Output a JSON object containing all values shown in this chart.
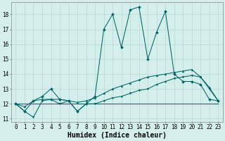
{
  "title": "",
  "xlabel": "Humidex (Indice chaleur)",
  "xlim": [
    -0.5,
    23.5
  ],
  "ylim": [
    10.8,
    18.8
  ],
  "yticks": [
    11,
    12,
    13,
    14,
    15,
    16,
    17,
    18
  ],
  "xticks": [
    0,
    1,
    2,
    3,
    4,
    5,
    6,
    7,
    8,
    9,
    10,
    11,
    12,
    13,
    14,
    15,
    16,
    17,
    18,
    19,
    20,
    21,
    22,
    23
  ],
  "bg_color": "#d4eeeb",
  "line_color": "#006666",
  "grid_color": "#b8d8d4",
  "series": {
    "flat": [
      12.0,
      12.0,
      12.0,
      12.0,
      12.0,
      12.0,
      12.0,
      12.0,
      12.0,
      12.0,
      12.0,
      12.0,
      12.0,
      12.0,
      12.0,
      12.0,
      12.0,
      12.0,
      12.0,
      12.0,
      12.0,
      12.0,
      12.0,
      12.0
    ],
    "lower": [
      12.0,
      11.5,
      11.1,
      12.2,
      12.3,
      12.0,
      12.2,
      11.5,
      12.0,
      12.0,
      12.2,
      12.4,
      12.5,
      12.7,
      12.9,
      13.0,
      13.3,
      13.5,
      13.7,
      13.8,
      13.9,
      13.8,
      13.0,
      12.2
    ],
    "middle": [
      12.0,
      11.8,
      12.2,
      12.3,
      12.3,
      12.3,
      12.2,
      12.1,
      12.2,
      12.4,
      12.7,
      13.0,
      13.2,
      13.4,
      13.6,
      13.8,
      13.9,
      14.0,
      14.1,
      14.2,
      14.3,
      13.8,
      13.1,
      12.2
    ],
    "upper": [
      12.0,
      11.5,
      12.2,
      12.5,
      13.0,
      12.3,
      12.2,
      11.5,
      12.0,
      12.5,
      17.0,
      18.0,
      15.8,
      18.3,
      18.5,
      15.0,
      16.8,
      18.2,
      14.0,
      13.5,
      13.5,
      13.3,
      12.3,
      12.2
    ]
  },
  "xlabel_fontsize": 7,
  "tick_fontsize": 5.5,
  "linewidth": 0.75,
  "markersize": 2.0
}
